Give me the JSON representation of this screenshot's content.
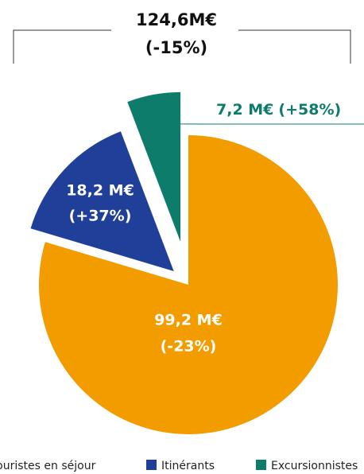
{
  "chart_data": {
    "type": "pie",
    "title": "124,6M€",
    "subtitle": "(-15%)",
    "categories": [
      "Touristes en séjour",
      "Itinérants",
      "Excursionnistes"
    ],
    "values": [
      99.2,
      18.2,
      7.2
    ],
    "value_labels": [
      "99,2 M€",
      "18,2 M€",
      "7,2 M€"
    ],
    "changes": [
      "(-23%)",
      "(+37%)",
      "(+58%)"
    ],
    "colors": [
      "#f39c00",
      "#1f3f99",
      "#0e7c6b"
    ],
    "legend": "bottom"
  }
}
